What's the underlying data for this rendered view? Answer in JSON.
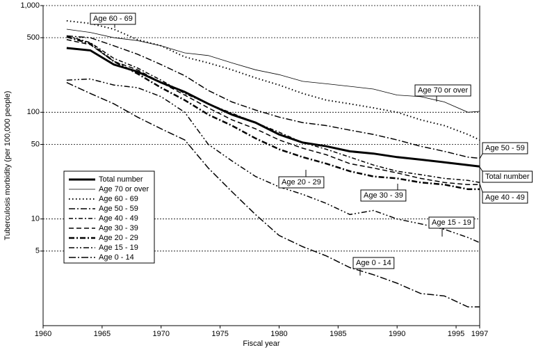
{
  "chart_data": {
    "type": "line",
    "xlabel": "Fiscal year",
    "ylabel": "Tuberculosis morbidity (per 100,000 people)",
    "log_y": true,
    "grid": true,
    "xlim": [
      1960,
      1997
    ],
    "xticks": [
      1960,
      1965,
      1970,
      1975,
      1980,
      1985,
      1990,
      1995,
      1997
    ],
    "ylim": [
      1,
      1000
    ],
    "yticks": [
      5,
      10,
      50,
      100,
      500,
      {
        "value": 1000,
        "label": "1,000"
      }
    ],
    "x": [
      1962,
      1964,
      1966,
      1968,
      1970,
      1972,
      1974,
      1976,
      1978,
      1980,
      1982,
      1984,
      1986,
      1988,
      1990,
      1992,
      1994,
      1996,
      1997
    ],
    "series": [
      {
        "name": "Total number",
        "color": "#000000",
        "width": 3,
        "dash": "none",
        "values": [
          400,
          380,
          280,
          240,
          190,
          155,
          120,
          95,
          80,
          62,
          52,
          48,
          43,
          41,
          38,
          36,
          34,
          32,
          31
        ]
      },
      {
        "name": "Age 70 or over",
        "color": "#000000",
        "width": 0.8,
        "dash": "none",
        "values": [
          600,
          560,
          500,
          470,
          420,
          360,
          340,
          290,
          250,
          225,
          195,
          185,
          175,
          165,
          145,
          140,
          125,
          100,
          102
        ]
      },
      {
        "name": "Age 60 - 69",
        "color": "#000000",
        "width": 2,
        "dash": "1.5,3.5",
        "values": [
          720,
          680,
          600,
          480,
          420,
          330,
          290,
          250,
          210,
          180,
          150,
          130,
          120,
          110,
          100,
          85,
          75,
          62,
          55
        ]
      },
      {
        "name": "Age 50 - 59",
        "color": "#000000",
        "width": 1.5,
        "dash": "9,3,2,3",
        "values": [
          520,
          500,
          420,
          350,
          280,
          220,
          160,
          125,
          105,
          90,
          80,
          75,
          68,
          62,
          55,
          48,
          43,
          38,
          37
        ]
      },
      {
        "name": "Age 40 - 49",
        "color": "#000000",
        "width": 1.5,
        "dash": "6,3,2,3",
        "values": [
          520,
          450,
          320,
          260,
          200,
          150,
          120,
          98,
          80,
          65,
          52,
          45,
          38,
          32,
          28,
          26,
          24,
          23,
          22
        ]
      },
      {
        "name": "Age 30 - 39",
        "color": "#000000",
        "width": 1.5,
        "dash": "7,4",
        "values": [
          480,
          430,
          300,
          250,
          190,
          145,
          110,
          85,
          70,
          55,
          46,
          40,
          33,
          30,
          27,
          24,
          22,
          21,
          21
        ]
      },
      {
        "name": "Age 20 - 29",
        "color": "#000000",
        "width": 2.5,
        "dash": "8,3,2,3",
        "values": [
          510,
          440,
          300,
          230,
          170,
          130,
          95,
          75,
          57,
          45,
          38,
          33,
          28,
          25,
          24,
          22,
          21,
          19,
          19
        ]
      },
      {
        "name": "Age 15 - 19",
        "color": "#000000",
        "width": 1.5,
        "dash": "8,3,2,3,2,3",
        "values": [
          200,
          205,
          180,
          170,
          140,
          100,
          50,
          35,
          25,
          20,
          17,
          14,
          11,
          12,
          10,
          9,
          8,
          6.7,
          6
        ]
      },
      {
        "name": "Age 0 - 14",
        "color": "#000000",
        "width": 1.5,
        "dash": "10,3,2,3",
        "values": [
          190,
          150,
          120,
          90,
          70,
          55,
          30,
          18,
          11,
          7,
          5.5,
          4.5,
          3.5,
          3,
          2.5,
          2,
          1.9,
          1.5,
          1.5
        ]
      }
    ]
  }
}
